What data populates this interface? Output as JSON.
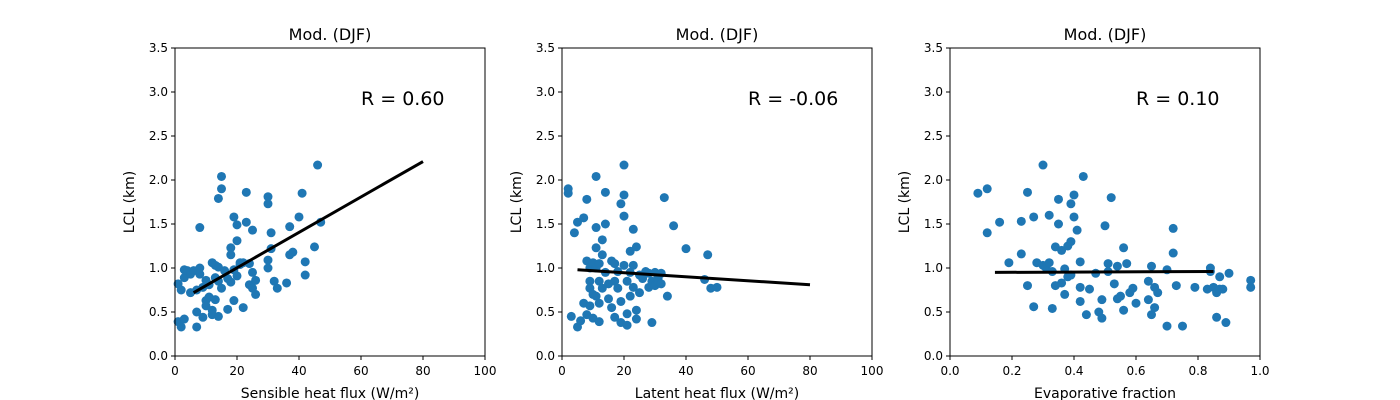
{
  "figure": {
    "background": "#ffffff",
    "point_color": "#1f77b4",
    "line_color": "#000000"
  },
  "chart_data": [
    {
      "type": "scatter",
      "title": "Mod. (DJF)",
      "xlabel": "Sensible heat flux (W/m²)",
      "ylabel": "LCL (km)",
      "xlim": [
        0,
        100
      ],
      "ylim": [
        0,
        3.5
      ],
      "xticks": [
        0,
        20,
        40,
        60,
        80,
        100
      ],
      "xtick_labels": [
        "0",
        "20",
        "40",
        "60",
        "80",
        "100"
      ],
      "yticks": [
        0,
        0.5,
        1.0,
        1.5,
        2.0,
        2.5,
        3.0,
        3.5
      ],
      "ytick_labels": [
        "0.0",
        "0.5",
        "1.0",
        "1.5",
        "2.0",
        "2.5",
        "3.0",
        "3.5"
      ],
      "annotation": "R = 0.60",
      "annotation_pos": [
        60,
        2.85
      ],
      "fit_line": [
        [
          6,
          0.72
        ],
        [
          80,
          2.21
        ]
      ],
      "points": [
        [
          1,
          0.82
        ],
        [
          1,
          0.39
        ],
        [
          2,
          0.33
        ],
        [
          2,
          0.75
        ],
        [
          3,
          0.42
        ],
        [
          3,
          0.89
        ],
        [
          3,
          0.98
        ],
        [
          4,
          0.97
        ],
        [
          5,
          0.93
        ],
        [
          5,
          0.72
        ],
        [
          6,
          0.97
        ],
        [
          7,
          0.75
        ],
        [
          7,
          0.5
        ],
        [
          7,
          0.33
        ],
        [
          8,
          0.93
        ],
        [
          8,
          1.0
        ],
        [
          8,
          1.46
        ],
        [
          9,
          0.78
        ],
        [
          9,
          0.44
        ],
        [
          10,
          0.86
        ],
        [
          10,
          0.63
        ],
        [
          10,
          0.57
        ],
        [
          11,
          0.67
        ],
        [
          11,
          0.81
        ],
        [
          12,
          0.52
        ],
        [
          12,
          0.47
        ],
        [
          12,
          1.06
        ],
        [
          13,
          1.03
        ],
        [
          13,
          0.64
        ],
        [
          13,
          0.89
        ],
        [
          14,
          0.85
        ],
        [
          14,
          1.79
        ],
        [
          14,
          1.01
        ],
        [
          14,
          0.45
        ],
        [
          15,
          2.04
        ],
        [
          15,
          1.9
        ],
        [
          15,
          0.77
        ],
        [
          16,
          0.97
        ],
        [
          17,
          0.53
        ],
        [
          17,
          0.88
        ],
        [
          18,
          0.84
        ],
        [
          18,
          1.23
        ],
        [
          18,
          1.15
        ],
        [
          19,
          0.98
        ],
        [
          19,
          0.63
        ],
        [
          19,
          1.58
        ],
        [
          20,
          1.31
        ],
        [
          20,
          1.49
        ],
        [
          20,
          0.91
        ],
        [
          21,
          1.06
        ],
        [
          21,
          1.04
        ],
        [
          22,
          0.55
        ],
        [
          22,
          1.06
        ],
        [
          23,
          1.86
        ],
        [
          23,
          1.52
        ],
        [
          24,
          0.81
        ],
        [
          24,
          1.05
        ],
        [
          25,
          0.77
        ],
        [
          25,
          0.95
        ],
        [
          25,
          1.43
        ],
        [
          26,
          0.86
        ],
        [
          26,
          0.7
        ],
        [
          30,
          1.73
        ],
        [
          30,
          1.81
        ],
        [
          30,
          1.0
        ],
        [
          30,
          1.09
        ],
        [
          31,
          1.22
        ],
        [
          31,
          1.4
        ],
        [
          32,
          0.85
        ],
        [
          33,
          0.77
        ],
        [
          36,
          0.83
        ],
        [
          37,
          1.15
        ],
        [
          37,
          1.47
        ],
        [
          38,
          1.18
        ],
        [
          40,
          1.58
        ],
        [
          41,
          1.85
        ],
        [
          42,
          1.07
        ],
        [
          42,
          0.92
        ],
        [
          45,
          1.24
        ],
        [
          46,
          2.17
        ],
        [
          47,
          1.52
        ]
      ]
    },
    {
      "type": "scatter",
      "title": "Mod. (DJF)",
      "xlabel": "Latent heat flux (W/m²)",
      "ylabel": "LCL (km)",
      "xlim": [
        0,
        100
      ],
      "ylim": [
        0,
        3.5
      ],
      "xticks": [
        0,
        20,
        40,
        60,
        80,
        100
      ],
      "xtick_labels": [
        "0",
        "20",
        "40",
        "60",
        "80",
        "100"
      ],
      "yticks": [
        0,
        0.5,
        1.0,
        1.5,
        2.0,
        2.5,
        3.0,
        3.5
      ],
      "ytick_labels": [
        "0.0",
        "0.5",
        "1.0",
        "1.5",
        "2.0",
        "2.5",
        "3.0",
        "3.5"
      ],
      "annotation": "R = -0.06",
      "annotation_pos": [
        60,
        2.85
      ],
      "fit_line": [
        [
          5,
          0.98
        ],
        [
          80,
          0.81
        ]
      ],
      "points": [
        [
          2,
          1.9
        ],
        [
          2,
          1.85
        ],
        [
          3,
          0.45
        ],
        [
          4,
          1.4
        ],
        [
          5,
          1.52
        ],
        [
          5,
          0.33
        ],
        [
          6,
          0.4
        ],
        [
          7,
          1.57
        ],
        [
          7,
          0.6
        ],
        [
          8,
          1.78
        ],
        [
          8,
          1.08
        ],
        [
          8,
          0.47
        ],
        [
          9,
          0.85
        ],
        [
          9,
          0.57
        ],
        [
          9,
          0.77
        ],
        [
          9,
          1.0
        ],
        [
          10,
          1.06
        ],
        [
          10,
          0.7
        ],
        [
          10,
          0.43
        ],
        [
          11,
          2.04
        ],
        [
          11,
          1.46
        ],
        [
          11,
          1.23
        ],
        [
          11,
          1.0
        ],
        [
          11,
          0.68
        ],
        [
          12,
          0.85
        ],
        [
          12,
          1.05
        ],
        [
          12,
          0.6
        ],
        [
          12,
          0.39
        ],
        [
          13,
          1.15
        ],
        [
          13,
          1.32
        ],
        [
          13,
          0.77
        ],
        [
          14,
          1.86
        ],
        [
          14,
          1.5
        ],
        [
          14,
          0.95
        ],
        [
          15,
          0.65
        ],
        [
          15,
          0.82
        ],
        [
          16,
          1.08
        ],
        [
          16,
          0.55
        ],
        [
          17,
          1.05
        ],
        [
          17,
          0.44
        ],
        [
          17,
          0.85
        ],
        [
          18,
          0.77
        ],
        [
          18,
          0.96
        ],
        [
          19,
          1.73
        ],
        [
          19,
          0.62
        ],
        [
          19,
          0.38
        ],
        [
          20,
          2.17
        ],
        [
          20,
          1.83
        ],
        [
          20,
          1.59
        ],
        [
          20,
          1.03
        ],
        [
          21,
          0.85
        ],
        [
          21,
          0.48
        ],
        [
          21,
          0.35
        ],
        [
          22,
          1.19
        ],
        [
          22,
          0.95
        ],
        [
          22,
          0.68
        ],
        [
          23,
          1.44
        ],
        [
          23,
          1.03
        ],
        [
          23,
          0.78
        ],
        [
          24,
          1.24
        ],
        [
          24,
          0.42
        ],
        [
          24,
          0.52
        ],
        [
          25,
          0.92
        ],
        [
          25,
          0.72
        ],
        [
          26,
          0.88
        ],
        [
          27,
          0.96
        ],
        [
          28,
          0.94
        ],
        [
          28,
          0.78
        ],
        [
          29,
          0.85
        ],
        [
          29,
          0.38
        ],
        [
          30,
          0.8
        ],
        [
          30,
          0.95
        ],
        [
          31,
          0.85
        ],
        [
          31,
          0.88
        ],
        [
          32,
          0.82
        ],
        [
          32,
          0.94
        ],
        [
          33,
          1.8
        ],
        [
          34,
          0.68
        ],
        [
          36,
          1.48
        ],
        [
          40,
          1.22
        ],
        [
          46,
          0.87
        ],
        [
          47,
          1.15
        ],
        [
          48,
          0.77
        ],
        [
          50,
          0.78
        ]
      ]
    },
    {
      "type": "scatter",
      "title": "Mod. (DJF)",
      "xlabel": "Evaporative fraction",
      "ylabel": "LCL (km)",
      "xlim": [
        0,
        1.0
      ],
      "ylim": [
        0,
        3.5
      ],
      "xticks": [
        0,
        0.2,
        0.4,
        0.6,
        0.8,
        1.0
      ],
      "xtick_labels": [
        "0.0",
        "0.2",
        "0.4",
        "0.6",
        "0.8",
        "1.0"
      ],
      "yticks": [
        0,
        0.5,
        1.0,
        1.5,
        2.0,
        2.5,
        3.0,
        3.5
      ],
      "ytick_labels": [
        "0.0",
        "0.5",
        "1.0",
        "1.5",
        "2.0",
        "2.5",
        "3.0",
        "3.5"
      ],
      "annotation": "R = 0.10",
      "annotation_pos": [
        0.6,
        2.85
      ],
      "fit_line": [
        [
          0.145,
          0.95
        ],
        [
          0.85,
          0.96
        ]
      ],
      "points": [
        [
          0.09,
          1.85
        ],
        [
          0.12,
          1.9
        ],
        [
          0.12,
          1.4
        ],
        [
          0.16,
          1.52
        ],
        [
          0.19,
          1.06
        ],
        [
          0.23,
          1.53
        ],
        [
          0.23,
          1.16
        ],
        [
          0.25,
          1.86
        ],
        [
          0.25,
          0.8
        ],
        [
          0.27,
          1.58
        ],
        [
          0.27,
          0.56
        ],
        [
          0.28,
          1.06
        ],
        [
          0.3,
          2.17
        ],
        [
          0.3,
          1.03
        ],
        [
          0.31,
          1.0
        ],
        [
          0.32,
          1.6
        ],
        [
          0.32,
          1.06
        ],
        [
          0.33,
          0.54
        ],
        [
          0.33,
          0.96
        ],
        [
          0.34,
          1.24
        ],
        [
          0.34,
          0.8
        ],
        [
          0.35,
          1.78
        ],
        [
          0.35,
          1.5
        ],
        [
          0.36,
          1.2
        ],
        [
          0.36,
          0.83
        ],
        [
          0.37,
          0.7
        ],
        [
          0.37,
          0.99
        ],
        [
          0.38,
          1.25
        ],
        [
          0.38,
          0.9
        ],
        [
          0.39,
          1.73
        ],
        [
          0.39,
          1.3
        ],
        [
          0.39,
          0.92
        ],
        [
          0.4,
          1.83
        ],
        [
          0.4,
          1.58
        ],
        [
          0.41,
          1.43
        ],
        [
          0.42,
          1.07
        ],
        [
          0.42,
          0.78
        ],
        [
          0.42,
          0.62
        ],
        [
          0.43,
          2.04
        ],
        [
          0.44,
          0.47
        ],
        [
          0.45,
          0.76
        ],
        [
          0.47,
          0.94
        ],
        [
          0.48,
          0.5
        ],
        [
          0.49,
          0.43
        ],
        [
          0.49,
          0.64
        ],
        [
          0.5,
          1.48
        ],
        [
          0.51,
          1.05
        ],
        [
          0.51,
          0.96
        ],
        [
          0.52,
          1.8
        ],
        [
          0.53,
          0.82
        ],
        [
          0.54,
          0.65
        ],
        [
          0.54,
          1.02
        ],
        [
          0.55,
          0.68
        ],
        [
          0.56,
          0.52
        ],
        [
          0.56,
          1.23
        ],
        [
          0.57,
          1.05
        ],
        [
          0.58,
          0.72
        ],
        [
          0.59,
          0.77
        ],
        [
          0.6,
          0.6
        ],
        [
          0.64,
          0.85
        ],
        [
          0.64,
          0.64
        ],
        [
          0.65,
          0.47
        ],
        [
          0.65,
          1.02
        ],
        [
          0.66,
          0.55
        ],
        [
          0.66,
          0.78
        ],
        [
          0.67,
          0.72
        ],
        [
          0.7,
          0.98
        ],
        [
          0.7,
          0.34
        ],
        [
          0.72,
          1.45
        ],
        [
          0.72,
          1.17
        ],
        [
          0.73,
          0.8
        ],
        [
          0.75,
          0.34
        ],
        [
          0.79,
          0.78
        ],
        [
          0.83,
          0.76
        ],
        [
          0.84,
          0.96
        ],
        [
          0.84,
          1.0
        ],
        [
          0.85,
          0.78
        ],
        [
          0.86,
          0.72
        ],
        [
          0.86,
          0.44
        ],
        [
          0.87,
          0.9
        ],
        [
          0.87,
          0.76
        ],
        [
          0.88,
          0.76
        ],
        [
          0.89,
          0.38
        ],
        [
          0.9,
          0.94
        ],
        [
          0.97,
          0.86
        ],
        [
          0.97,
          0.78
        ]
      ]
    }
  ]
}
